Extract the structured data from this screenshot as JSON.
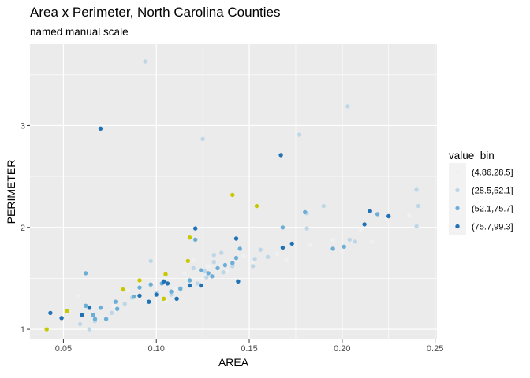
{
  "chart_data": {
    "type": "scatter",
    "title": "Area x Perimeter, North Carolina Counties",
    "subtitle": "named manual scale",
    "xlabel": "AREA",
    "ylabel": "PERIMETER",
    "xlim": [
      0.032,
      0.251
    ],
    "ylim": [
      0.9,
      3.8
    ],
    "xticks": [
      0.05,
      0.1,
      0.15,
      0.2,
      0.25
    ],
    "xtick_labels": [
      "0.05",
      "0.10",
      "0.15",
      "0.20",
      "0.25"
    ],
    "yticks": [
      1,
      2,
      3
    ],
    "ytick_labels": [
      "1",
      "2",
      "3"
    ],
    "grid": true,
    "panel_background": "#ebebeb",
    "legend": {
      "title": "value_bin",
      "position": "right",
      "entries": [
        {
          "label": "(4.86,28.5]",
          "color": "#f0f0f0"
        },
        {
          "label": "(28.5,52.1]",
          "color": "#bdd7e7"
        },
        {
          "label": "(52.1,75.7]",
          "color": "#6baed6"
        },
        {
          "label": "(75.7,99.3]",
          "color": "#2171b5"
        }
      ]
    },
    "extra_series_color": "#c8c800",
    "series": [
      {
        "name": "(4.86,28.5]",
        "color": "#f0f0f0",
        "points": [
          [
            0.058,
            1.32
          ],
          [
            0.077,
            1.23
          ],
          [
            0.085,
            1.38
          ],
          [
            0.091,
            1.44
          ],
          [
            0.098,
            1.46
          ],
          [
            0.105,
            1.28
          ],
          [
            0.11,
            1.4
          ],
          [
            0.115,
            1.55
          ],
          [
            0.12,
            1.68
          ],
          [
            0.128,
            1.62
          ],
          [
            0.138,
            1.57
          ],
          [
            0.147,
            1.72
          ],
          [
            0.152,
            1.66
          ],
          [
            0.165,
            1.74
          ],
          [
            0.17,
            1.68
          ],
          [
            0.183,
            1.83
          ],
          [
            0.195,
            1.88
          ],
          [
            0.2,
            1.76
          ],
          [
            0.21,
            1.98
          ],
          [
            0.216,
            1.86
          ],
          [
            0.224,
            2.08
          ],
          [
            0.236,
            2.12
          ]
        ]
      },
      {
        "name": "(28.5,52.1]",
        "color": "#bdd7e7",
        "points": [
          [
            0.094,
            3.63
          ],
          [
            0.203,
            3.19
          ],
          [
            0.125,
            2.87
          ],
          [
            0.177,
            2.91
          ],
          [
            0.24,
            2.37
          ],
          [
            0.241,
            2.21
          ],
          [
            0.24,
            2.01
          ],
          [
            0.19,
            2.21
          ],
          [
            0.181,
            2.14
          ],
          [
            0.181,
            1.99
          ],
          [
            0.204,
            1.88
          ],
          [
            0.207,
            1.86
          ],
          [
            0.097,
            1.67
          ],
          [
            0.131,
            1.73
          ],
          [
            0.135,
            1.75
          ],
          [
            0.12,
            1.6
          ],
          [
            0.126,
            1.57
          ],
          [
            0.131,
            1.66
          ],
          [
            0.141,
            1.62
          ],
          [
            0.152,
            1.62
          ],
          [
            0.156,
            1.78
          ],
          [
            0.16,
            1.71
          ],
          [
            0.059,
            1.05
          ],
          [
            0.064,
            1.0
          ],
          [
            0.067,
            1.08
          ],
          [
            0.076,
            1.16
          ],
          [
            0.083,
            1.25
          ],
          [
            0.087,
            1.31
          ],
          [
            0.1,
            1.36
          ],
          [
            0.108,
            1.34
          ],
          [
            0.113,
            1.39
          ],
          [
            0.122,
            1.45
          ],
          [
            0.127,
            1.51
          ],
          [
            0.136,
            1.56
          ],
          [
            0.153,
            1.69
          ]
        ]
      },
      {
        "name": "(52.1,75.7]",
        "color": "#6baed6",
        "points": [
          [
            0.062,
            1.55
          ],
          [
            0.062,
            1.23
          ],
          [
            0.066,
            1.14
          ],
          [
            0.067,
            1.1
          ],
          [
            0.07,
            1.21
          ],
          [
            0.073,
            1.1
          ],
          [
            0.078,
            1.27
          ],
          [
            0.079,
            1.2
          ],
          [
            0.088,
            1.32
          ],
          [
            0.091,
            1.41
          ],
          [
            0.097,
            1.44
          ],
          [
            0.103,
            1.45
          ],
          [
            0.108,
            1.37
          ],
          [
            0.113,
            1.4
          ],
          [
            0.118,
            1.48
          ],
          [
            0.121,
            1.88
          ],
          [
            0.124,
            1.58
          ],
          [
            0.128,
            1.55
          ],
          [
            0.13,
            1.52
          ],
          [
            0.133,
            1.6
          ],
          [
            0.137,
            1.63
          ],
          [
            0.141,
            1.65
          ],
          [
            0.143,
            1.7
          ],
          [
            0.145,
            1.79
          ],
          [
            0.168,
            2.0
          ],
          [
            0.18,
            2.15
          ],
          [
            0.195,
            1.79
          ],
          [
            0.201,
            1.81
          ],
          [
            0.219,
            2.13
          ]
        ]
      },
      {
        "name": "(75.7,99.3]",
        "color": "#2171b5",
        "points": [
          [
            0.043,
            1.16
          ],
          [
            0.049,
            1.11
          ],
          [
            0.06,
            1.14
          ],
          [
            0.064,
            1.21
          ],
          [
            0.07,
            2.97
          ],
          [
            0.091,
            1.33
          ],
          [
            0.096,
            1.27
          ],
          [
            0.1,
            1.34
          ],
          [
            0.104,
            1.47
          ],
          [
            0.106,
            1.45
          ],
          [
            0.111,
            1.3
          ],
          [
            0.118,
            1.43
          ],
          [
            0.121,
            1.99
          ],
          [
            0.124,
            1.43
          ],
          [
            0.143,
            1.89
          ],
          [
            0.144,
            1.47
          ],
          [
            0.167,
            2.71
          ],
          [
            0.168,
            1.8
          ],
          [
            0.173,
            1.84
          ],
          [
            0.212,
            2.03
          ],
          [
            0.215,
            2.16
          ],
          [
            0.225,
            2.11
          ]
        ]
      },
      {
        "name": "",
        "color": "#c8c800",
        "points": [
          [
            0.041,
            1.0
          ],
          [
            0.052,
            1.18
          ],
          [
            0.082,
            1.39
          ],
          [
            0.091,
            1.48
          ],
          [
            0.104,
            1.3
          ],
          [
            0.105,
            1.54
          ],
          [
            0.117,
            1.67
          ],
          [
            0.118,
            1.9
          ],
          [
            0.141,
            2.32
          ],
          [
            0.154,
            2.21
          ]
        ]
      }
    ]
  }
}
